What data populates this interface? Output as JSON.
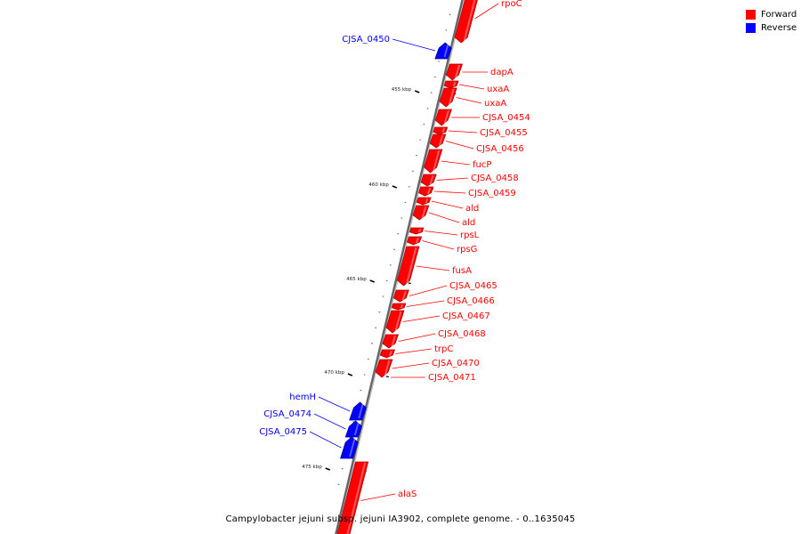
{
  "title": "Campylobacter jejuni subsp. jejuni IA3902, complete genome. - 0..1635045",
  "legend": [
    {
      "label": "Forward",
      "color": "#ff0000"
    },
    {
      "label": "Reverse",
      "color": "#0000ff"
    }
  ],
  "colors": {
    "forward": "#ff0000",
    "reverse": "#0000ff",
    "backbone": "#888888"
  },
  "ticks": [
    "455 kbp",
    "460 kbp",
    "465 kbp",
    "470 kbp",
    "475 kbp"
  ],
  "genes": [
    {
      "name": "rpoC",
      "strand": "forward"
    },
    {
      "name": "CJSA_0450",
      "strand": "reverse"
    },
    {
      "name": "dapA",
      "strand": "forward"
    },
    {
      "name": "uxaA",
      "strand": "forward"
    },
    {
      "name": "uxaA",
      "strand": "forward"
    },
    {
      "name": "CJSA_0454",
      "strand": "forward"
    },
    {
      "name": "CJSA_0455",
      "strand": "forward"
    },
    {
      "name": "CJSA_0456",
      "strand": "forward"
    },
    {
      "name": "fucP",
      "strand": "forward"
    },
    {
      "name": "CJSA_0458",
      "strand": "forward"
    },
    {
      "name": "CJSA_0459",
      "strand": "forward"
    },
    {
      "name": "ald",
      "strand": "forward"
    },
    {
      "name": "ald",
      "strand": "forward"
    },
    {
      "name": "rpsL",
      "strand": "forward"
    },
    {
      "name": "rpsG",
      "strand": "forward"
    },
    {
      "name": "fusA",
      "strand": "forward"
    },
    {
      "name": "CJSA_0465",
      "strand": "forward"
    },
    {
      "name": "CJSA_0466",
      "strand": "forward"
    },
    {
      "name": "CJSA_0467",
      "strand": "forward"
    },
    {
      "name": "CJSA_0468",
      "strand": "forward"
    },
    {
      "name": "trpC",
      "strand": "forward"
    },
    {
      "name": "CJSA_0470",
      "strand": "forward"
    },
    {
      "name": "CJSA_0471",
      "strand": "forward"
    },
    {
      "name": "hemH",
      "strand": "reverse"
    },
    {
      "name": "CJSA_0474",
      "strand": "reverse"
    },
    {
      "name": "CJSA_0475",
      "strand": "reverse"
    },
    {
      "name": "alaS",
      "strand": "forward"
    }
  ]
}
